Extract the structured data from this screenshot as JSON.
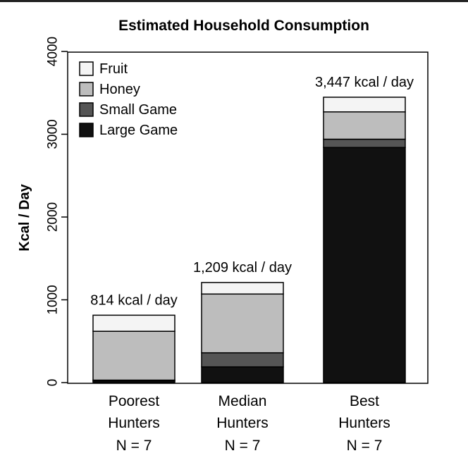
{
  "chart_data": {
    "type": "bar",
    "stacked": true,
    "title": "Estimated Household Consumption",
    "ylabel": "Kcal / Day",
    "xlabel": "",
    "ylim": [
      0,
      4000
    ],
    "yticks": [
      0,
      1000,
      2000,
      3000,
      4000
    ],
    "grid": false,
    "legend_position": "top-left",
    "categories": [
      {
        "lines": [
          "Poorest",
          "Hunters",
          "N = 7"
        ]
      },
      {
        "lines": [
          "Median",
          "Hunters",
          "N = 7"
        ]
      },
      {
        "lines": [
          "Best",
          "Hunters",
          "N = 7"
        ]
      }
    ],
    "totals": [
      "814 kcal / day",
      "1,209 kcal / day",
      "3,447 kcal / day"
    ],
    "series": [
      {
        "name": "Large Game",
        "color": "#111111",
        "values": [
          20,
          190,
          2840
        ]
      },
      {
        "name": "Small Game",
        "color": "#555555",
        "values": [
          10,
          170,
          100
        ]
      },
      {
        "name": "Honey",
        "color": "#bdbdbd",
        "values": [
          590,
          710,
          330
        ]
      },
      {
        "name": "Fruit",
        "color": "#f4f4f4",
        "values": [
          194,
          139,
          177
        ]
      }
    ],
    "legend_order": [
      "Fruit",
      "Honey",
      "Small Game",
      "Large Game"
    ]
  }
}
